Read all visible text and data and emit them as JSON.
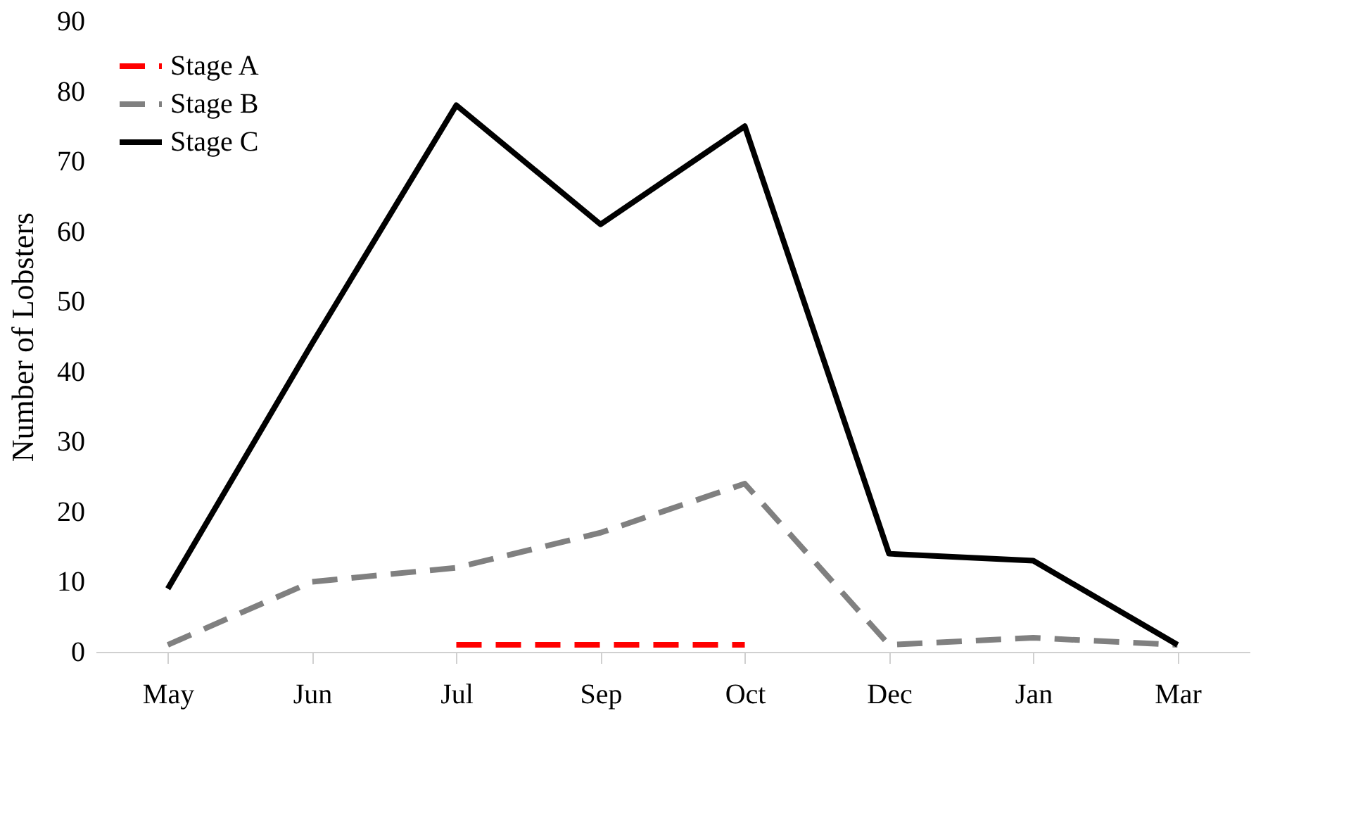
{
  "chart_data": {
    "type": "line",
    "ylabel": "Number of  Lobsters",
    "categories": [
      "May",
      "Jun",
      "Jul",
      "Sep",
      "Oct",
      "Dec",
      "Jan",
      "Mar"
    ],
    "series": [
      {
        "name": "Stage A",
        "color": "#ff0000",
        "line_style": "dashed",
        "values": [
          null,
          null,
          1,
          1,
          1,
          null,
          null,
          null
        ]
      },
      {
        "name": "Stage B",
        "color": "#808080",
        "line_style": "dashed",
        "values": [
          1,
          10,
          12,
          17,
          24,
          1,
          2,
          1
        ]
      },
      {
        "name": "Stage C",
        "color": "#000000",
        "line_style": "solid",
        "values": [
          9,
          44,
          78,
          61,
          75,
          14,
          13,
          1
        ]
      }
    ],
    "ylim": [
      0,
      90
    ],
    "yticks": [
      0,
      10,
      20,
      30,
      40,
      50,
      60,
      70,
      80,
      90
    ],
    "grid": false,
    "legend": "top left",
    "marker": "none"
  }
}
